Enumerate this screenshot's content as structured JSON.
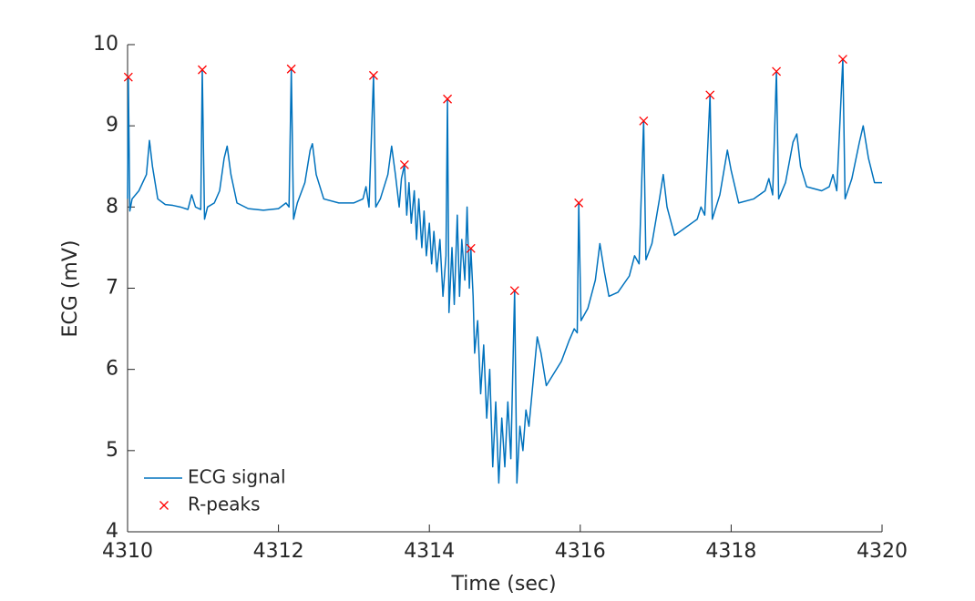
{
  "chart_data": {
    "type": "line",
    "xlabel": "Time (sec)",
    "ylabel": "ECG (mV)",
    "xlim": [
      4310,
      4320
    ],
    "xticks": [
      4310,
      4312,
      4314,
      4316,
      4318,
      4320
    ],
    "ylim": [
      4,
      10
    ],
    "yticks": [
      4,
      5,
      6,
      7,
      8,
      9,
      10
    ],
    "grid": false,
    "legend": "lower-left",
    "series": [
      {
        "name": "ECG signal",
        "color": "#0072bd",
        "mode": "line",
        "x": [
          4310.0,
          4310.01,
          4310.03,
          4310.06,
          4310.15,
          4310.25,
          4310.29,
          4310.33,
          4310.4,
          4310.5,
          4310.6,
          4310.7,
          4310.8,
          4310.85,
          4310.9,
          4310.97,
          4310.99,
          4311.02,
          4311.06,
          4311.15,
          4311.22,
          4311.28,
          4311.32,
          4311.37,
          4311.45,
          4311.6,
          4311.8,
          4312.0,
          4312.1,
          4312.14,
          4312.17,
          4312.2,
          4312.25,
          4312.35,
          4312.42,
          4312.45,
          4312.5,
          4312.6,
          4312.8,
          4313.0,
          4313.12,
          4313.16,
          4313.2,
          4313.26,
          4313.29,
          4313.35,
          4313.45,
          4313.5,
          4313.55,
          4313.6,
          4313.63,
          4313.67,
          4313.7,
          4313.73,
          4313.76,
          4313.8,
          4313.83,
          4313.86,
          4313.9,
          4313.93,
          4313.96,
          4314.0,
          4314.03,
          4314.06,
          4314.1,
          4314.14,
          4314.18,
          4314.22,
          4314.24,
          4314.26,
          4314.3,
          4314.33,
          4314.37,
          4314.4,
          4314.43,
          4314.47,
          4314.5,
          4314.53,
          4314.55,
          4314.58,
          4314.6,
          4314.64,
          4314.68,
          4314.72,
          4314.76,
          4314.8,
          4314.84,
          4314.88,
          4314.92,
          4314.96,
          4315.0,
          4315.04,
          4315.08,
          4315.13,
          4315.16,
          4315.2,
          4315.24,
          4315.28,
          4315.32,
          4315.38,
          4315.43,
          4315.48,
          4315.55,
          4315.65,
          4315.75,
          4315.85,
          4315.92,
          4315.96,
          4315.98,
          4316.01,
          4316.1,
          4316.2,
          4316.26,
          4316.32,
          4316.38,
          4316.5,
          4316.65,
          4316.72,
          4316.78,
          4316.84,
          4316.87,
          4316.95,
          4317.05,
          4317.1,
          4317.15,
          4317.25,
          4317.4,
          4317.55,
          4317.6,
          4317.65,
          4317.72,
          4317.75,
          4317.85,
          4317.95,
          4318.0,
          4318.1,
          4318.3,
          4318.45,
          4318.5,
          4318.55,
          4318.6,
          4318.63,
          4318.72,
          4318.82,
          4318.87,
          4318.92,
          4319.0,
          4319.2,
          4319.3,
          4319.35,
          4319.4,
          4319.48,
          4319.51,
          4319.6,
          4319.7,
          4319.75,
          4319.82,
          4319.9,
          4320.0
        ],
        "values": [
          8.1,
          9.6,
          7.95,
          8.1,
          8.2,
          8.4,
          8.82,
          8.5,
          8.1,
          8.03,
          8.02,
          8.0,
          7.97,
          8.15,
          8.0,
          7.97,
          9.69,
          7.85,
          8.0,
          8.05,
          8.2,
          8.6,
          8.75,
          8.4,
          8.05,
          7.98,
          7.96,
          7.98,
          8.05,
          8.0,
          9.7,
          7.85,
          8.05,
          8.3,
          8.7,
          8.78,
          8.4,
          8.1,
          8.05,
          8.05,
          8.1,
          8.25,
          8.0,
          9.62,
          8.0,
          8.1,
          8.4,
          8.75,
          8.4,
          8.0,
          8.35,
          8.52,
          7.9,
          8.3,
          7.8,
          8.2,
          7.6,
          8.1,
          7.5,
          7.95,
          7.4,
          7.8,
          7.3,
          7.7,
          7.2,
          7.6,
          6.9,
          7.4,
          9.33,
          6.7,
          7.5,
          6.8,
          7.9,
          6.9,
          7.6,
          7.1,
          8.0,
          7.0,
          7.49,
          6.9,
          6.2,
          6.6,
          5.7,
          6.3,
          5.4,
          6.0,
          4.8,
          5.6,
          4.6,
          5.4,
          4.8,
          5.6,
          4.9,
          6.97,
          4.6,
          5.3,
          5.0,
          5.5,
          5.3,
          5.9,
          6.4,
          6.2,
          5.8,
          5.95,
          6.1,
          6.35,
          6.5,
          6.45,
          8.05,
          6.6,
          6.75,
          7.1,
          7.55,
          7.2,
          6.9,
          6.95,
          7.15,
          7.4,
          7.3,
          9.06,
          7.35,
          7.55,
          8.1,
          8.4,
          8.0,
          7.65,
          7.75,
          7.85,
          8.0,
          7.9,
          9.38,
          7.85,
          8.15,
          8.7,
          8.45,
          8.05,
          8.1,
          8.2,
          8.35,
          8.15,
          9.67,
          8.1,
          8.3,
          8.8,
          8.9,
          8.5,
          8.25,
          8.2,
          8.25,
          8.4,
          8.2,
          9.82,
          8.1,
          8.35,
          8.8,
          9.0,
          8.6,
          8.3,
          8.3
        ]
      },
      {
        "name": "R-peaks",
        "color": "#ff0000",
        "mode": "markers",
        "marker": "x",
        "x": [
          4310.01,
          4310.99,
          4312.17,
          4313.26,
          4313.67,
          4314.24,
          4314.55,
          4315.13,
          4315.98,
          4316.84,
          4317.72,
          4318.6,
          4319.48
        ],
        "values": [
          9.6,
          9.69,
          9.7,
          9.62,
          8.52,
          9.33,
          7.49,
          6.97,
          8.05,
          9.06,
          9.38,
          9.67,
          9.82
        ]
      }
    ]
  }
}
